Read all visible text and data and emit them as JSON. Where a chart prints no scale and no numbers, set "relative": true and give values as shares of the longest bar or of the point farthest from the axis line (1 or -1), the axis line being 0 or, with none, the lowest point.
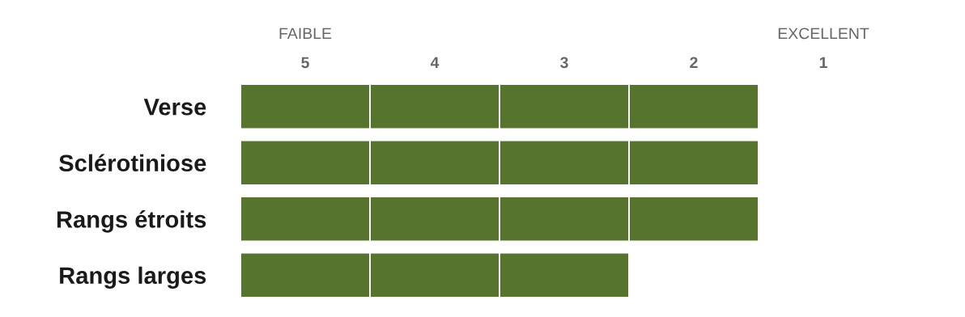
{
  "chart_data": {
    "type": "bar",
    "orientation": "horizontal",
    "stacked": true,
    "relative": true,
    "categories": [
      "Verse",
      "Sclérotiniose",
      "Rangs étroits",
      "Rangs larges"
    ],
    "series": [
      {
        "color": "#56742e",
        "values": [
          0.25,
          0.25,
          0.25,
          0.25
        ]
      },
      {
        "color": "#56742e",
        "values": [
          0.25,
          0.25,
          0.25,
          0.25
        ]
      },
      {
        "color": "#56742e",
        "values": [
          0.25,
          0.25,
          0.25,
          0.25
        ]
      },
      {
        "color": "#56742e",
        "values": [
          0.25,
          0.25,
          0.25,
          null
        ]
      }
    ],
    "annotations": [
      "FAIBLE",
      "EXCELLENT",
      "5",
      "4",
      "3",
      "2",
      "1"
    ],
    "grid": false,
    "legend": false
  }
}
